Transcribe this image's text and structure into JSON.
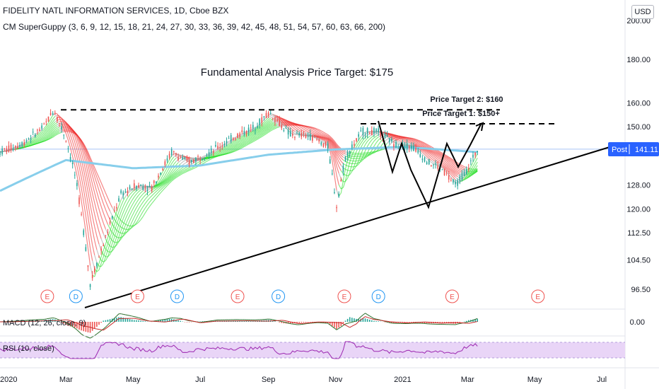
{
  "header": {
    "title": "FIDELITY NATL INFORMATION SERVICES, 1D, Cboe BZX",
    "indicator": "CM SuperGuppy (3, 6, 9, 12, 15, 18, 21, 24, 27, 30, 33, 36, 39, 42, 45, 48, 51, 54, 57, 60, 63, 66, 200)",
    "currency_button": "USD"
  },
  "annotations": {
    "main_title": "Fundamental Analysis Price Target: $175",
    "target2": "Price Target 2: $160",
    "target1": "Price Target 1: $150+"
  },
  "price_badge": {
    "label": "Post",
    "value": "141.11",
    "color": "#2962ff"
  },
  "subpanes": {
    "macd_label": "MACD (12, 26, close, 9)",
    "rsi_label": "RSI (10, close)"
  },
  "colors": {
    "ma200": "#87ceeb",
    "guppy_bull": "#22dd22",
    "guppy_bear": "#ee2222",
    "guppy_neutral": "#999999",
    "up_candle": "#26a69a",
    "down_candle": "#ef5350",
    "earnings": "#ef5350",
    "dividend": "#2196f3",
    "rsi_band": "#e9d5f7",
    "rsi_line": "#9c27b0"
  },
  "chart_data": {
    "type": "candlestick",
    "y_axis_scale": "log",
    "y_ticks": [
      "200.00",
      "180.00",
      "160.00",
      "150.00",
      "141.11",
      "128.00",
      "120.00",
      "112.50",
      "104.50",
      "96.50"
    ],
    "y_tick_values": [
      200,
      180,
      160,
      150,
      128,
      120,
      112.5,
      104.5,
      96.5
    ],
    "macd_ticks": [
      "0.00"
    ],
    "x_ticks": [
      "2020",
      "Mar",
      "May",
      "Jul",
      "Sep",
      "Nov",
      "2021",
      "Mar",
      "May",
      "Jul"
    ],
    "x_tick_dates": [
      "2020-01-01",
      "2020-03-01",
      "2020-05-01",
      "2020-07-01",
      "2020-09-01",
      "2020-11-01",
      "2021-01-01",
      "2021-03-01",
      "2021-05-01",
      "2021-07-01"
    ],
    "last_price": 141.11,
    "price_path": [
      [
        "2020-01-01",
        140
      ],
      [
        "2020-01-20",
        143
      ],
      [
        "2020-02-10",
        150
      ],
      [
        "2020-02-19",
        157
      ],
      [
        "2020-03-01",
        145
      ],
      [
        "2020-03-10",
        130
      ],
      [
        "2020-03-23",
        98
      ],
      [
        "2020-04-05",
        110
      ],
      [
        "2020-04-20",
        125
      ],
      [
        "2020-05-05",
        128
      ],
      [
        "2020-05-18",
        127
      ],
      [
        "2020-06-05",
        140
      ],
      [
        "2020-06-20",
        136
      ],
      [
        "2020-07-10",
        140
      ],
      [
        "2020-08-01",
        146
      ],
      [
        "2020-08-20",
        150
      ],
      [
        "2020-09-02",
        156
      ],
      [
        "2020-09-20",
        147
      ],
      [
        "2020-10-10",
        146
      ],
      [
        "2020-10-25",
        142
      ],
      [
        "2020-11-02",
        121
      ],
      [
        "2020-11-10",
        138
      ],
      [
        "2020-11-25",
        148
      ],
      [
        "2020-12-10",
        148
      ],
      [
        "2020-12-25",
        143
      ],
      [
        "2021-01-10",
        142
      ],
      [
        "2021-01-25",
        136
      ],
      [
        "2021-02-05",
        134
      ],
      [
        "2021-02-18",
        128
      ],
      [
        "2021-02-28",
        133
      ],
      [
        "2021-03-10",
        141
      ]
    ],
    "ma200_path": [
      [
        "2020-01-01",
        126
      ],
      [
        "2020-03-01",
        137
      ],
      [
        "2020-05-01",
        134
      ],
      [
        "2020-07-01",
        135
      ],
      [
        "2020-09-01",
        139
      ],
      [
        "2020-11-01",
        141
      ],
      [
        "2021-01-01",
        142
      ],
      [
        "2021-03-10",
        140
      ]
    ],
    "resistance_level": 157,
    "target_levels": [
      160,
      150
    ],
    "fundamental_target": 175,
    "earnings_dates": [
      "2020-02-13",
      "2020-05-05",
      "2020-08-04",
      "2020-11-09",
      "2021-02-15",
      "2021-05-04"
    ],
    "dividend_dates": [
      "2020-03-10",
      "2020-06-10",
      "2020-09-10",
      "2020-12-10"
    ]
  }
}
